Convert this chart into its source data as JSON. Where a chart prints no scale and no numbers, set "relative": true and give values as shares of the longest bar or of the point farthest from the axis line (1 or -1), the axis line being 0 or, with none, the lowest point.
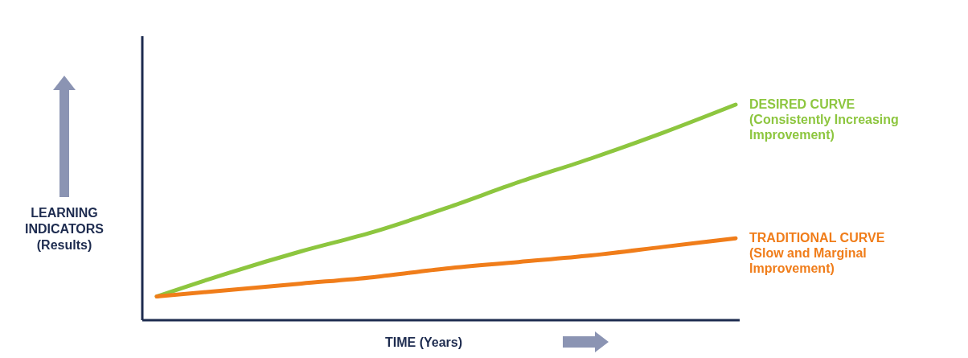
{
  "chart_data": {
    "type": "line",
    "relative": true,
    "xlabel": "TIME (Years)",
    "ylabel": "LEARNING INDICATORS (Results)",
    "categories": [
      null,
      null,
      null,
      null,
      null,
      null,
      null,
      null,
      null
    ],
    "series": [
      {
        "name": "DESIRED CURVE",
        "color": "#8dc63f",
        "values": [
          0.11,
          0.22,
          0.32,
          0.41,
          0.52,
          0.64,
          0.75,
          0.87,
          1
        ]
      },
      {
        "name": "TRADITIONAL CURVE",
        "color": "#f07d1a",
        "values": [
          0.11,
          0.14,
          0.17,
          0.2,
          0.24,
          0.27,
          0.3,
          0.34,
          0.38
        ]
      }
    ],
    "annotations": [
      "(Consistently Increasing Improvement)",
      "(Slow and Marginal Improvement)"
    ],
    "marker": "none",
    "line_style": "solid"
  }
}
